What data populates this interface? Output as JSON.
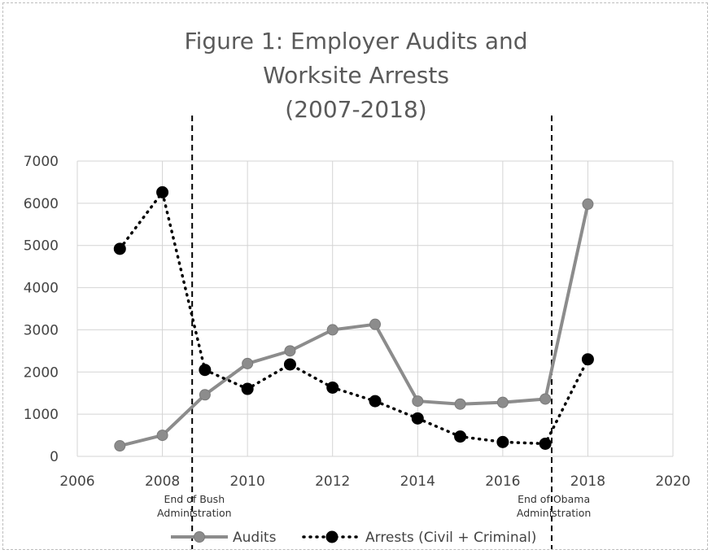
{
  "chart_data": {
    "type": "line",
    "title_lines": [
      "Figure 1: Employer Audits and",
      "Worksite Arrests",
      "(2007-2018)"
    ],
    "xlim": [
      2006,
      2020
    ],
    "ylim": [
      0,
      7000
    ],
    "x_ticks": [
      2006,
      2008,
      2010,
      2012,
      2014,
      2016,
      2018,
      2020
    ],
    "y_ticks": [
      0,
      1000,
      2000,
      3000,
      4000,
      5000,
      6000,
      7000
    ],
    "grid": true,
    "legend_position": "bottom",
    "series": [
      {
        "name": "Audits",
        "style": "solid",
        "color": "#8c8c8c",
        "x": [
          2007,
          2008,
          2009,
          2010,
          2011,
          2012,
          2013,
          2014,
          2015,
          2016,
          2017,
          2018
        ],
        "values": [
          250,
          500,
          1460,
          2200,
          2500,
          3000,
          3130,
          1310,
          1240,
          1280,
          1360,
          5980
        ]
      },
      {
        "name": "Arrests (Civil + Criminal)",
        "style": "dotted",
        "color": "#000000",
        "x": [
          2007,
          2008,
          2009,
          2010,
          2011,
          2012,
          2013,
          2014,
          2015,
          2016,
          2017,
          2018
        ],
        "values": [
          4920,
          6260,
          2050,
          1600,
          2180,
          1630,
          1310,
          900,
          470,
          340,
          300,
          2300
        ]
      }
    ],
    "vertical_markers": [
      {
        "x": 2008.7,
        "label_lines": [
          "End of Bush",
          "Administration"
        ]
      },
      {
        "x": 2017.15,
        "label_lines": [
          "End of Obama",
          "Administration"
        ]
      }
    ]
  }
}
